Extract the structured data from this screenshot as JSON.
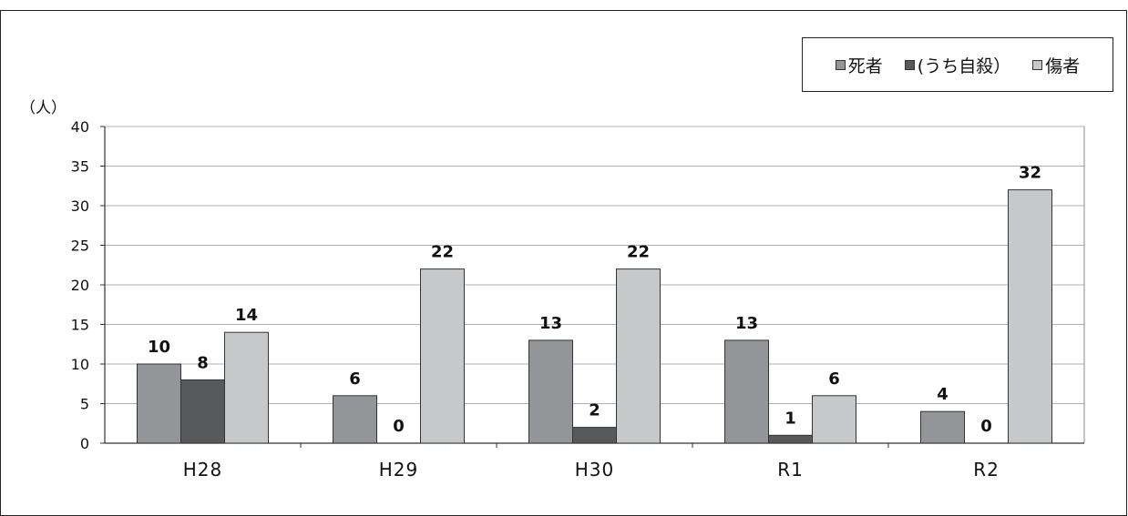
{
  "chart_data": {
    "type": "bar",
    "unit_label": "（人）",
    "categories": [
      "H28",
      "H29",
      "H30",
      "R1",
      "R2"
    ],
    "series": [
      {
        "name": "死者",
        "values": [
          10,
          6,
          13,
          13,
          4
        ],
        "color": "#939598"
      },
      {
        "name": "(うち自殺）",
        "values": [
          8,
          0,
          2,
          1,
          0
        ],
        "color": "#58595b"
      },
      {
        "name": "傷者",
        "values": [
          14,
          22,
          22,
          6,
          32
        ],
        "color": "#c7c8ca"
      }
    ],
    "ylim": [
      0,
      40
    ],
    "yticks": [
      0,
      5,
      10,
      15,
      20,
      25,
      30,
      35,
      40
    ],
    "grid": true,
    "legend_position": "top-right"
  }
}
